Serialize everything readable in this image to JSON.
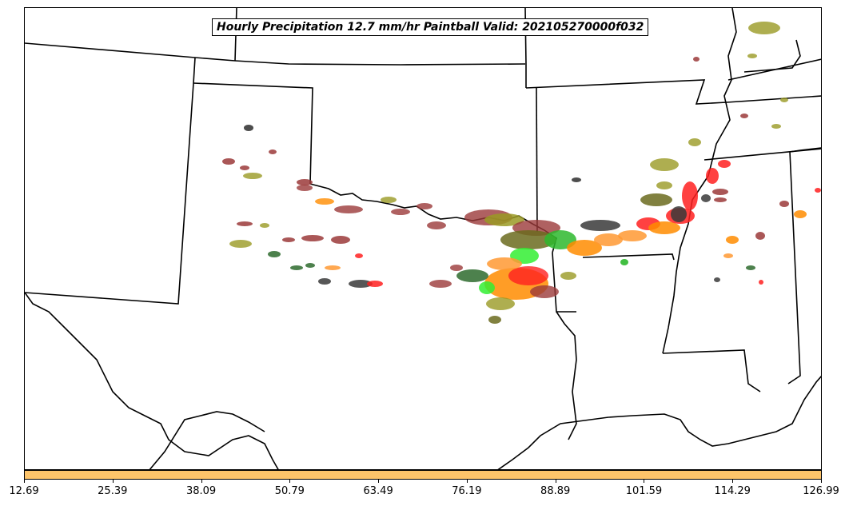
{
  "title": "Hourly Precipitation 12.7 mm/hr Paintball Valid: 202105270000f032",
  "colorbar": {
    "color": "#FDC46A",
    "ticks": [
      "12.69",
      "25.39",
      "38.09",
      "50.79",
      "63.49",
      "76.19",
      "88.89",
      "101.59",
      "114.29",
      "126.99"
    ]
  },
  "member_colors": {
    "dark-red": "#9B3A3A",
    "olive": "#9A9A24",
    "orange": "#FF8C00",
    "bright-orange": "#FF9933",
    "red": "#FF2020",
    "green": "#2DB82D",
    "bright-green": "#33EE33",
    "dark-gray": "#3A3A3A",
    "dark-green": "#2E6B2E"
  }
}
